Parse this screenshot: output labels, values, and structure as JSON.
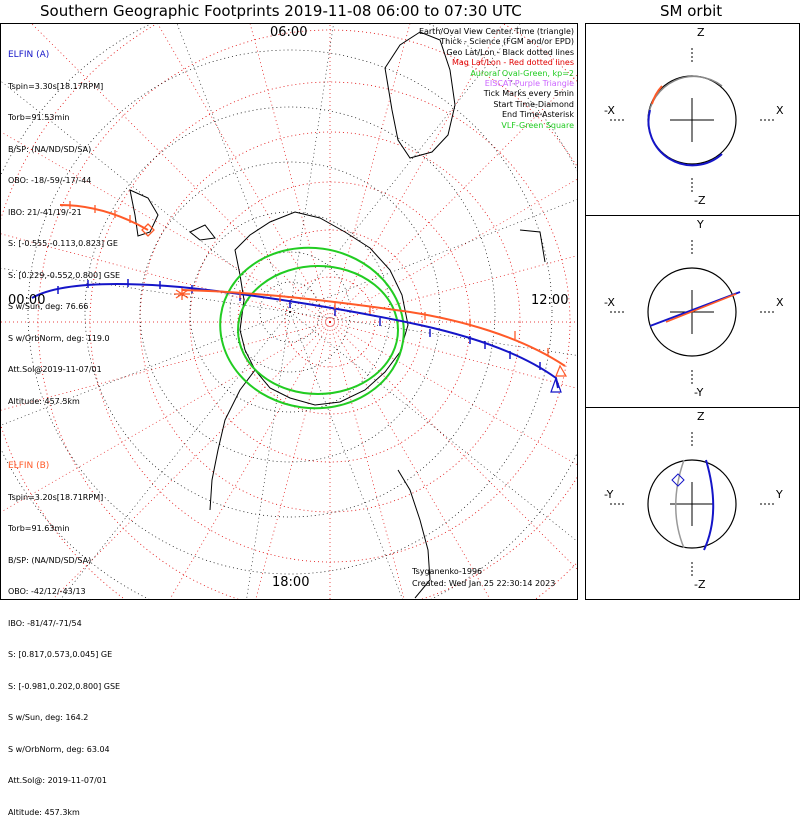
{
  "title": "Southern Geographic Footprints 2019-11-08 06:00 to 07:30 UTC",
  "orbit_title": "SM orbit",
  "hour_labels": {
    "top": "06:00",
    "left": "00:00",
    "right": "12:00",
    "bottom": "18:00"
  },
  "elfin_a": {
    "name": "ELFIN (A)",
    "color": "#1515c8",
    "lines": [
      "Tspin=3.30s[18.17RPM]",
      "Torb=91.53min",
      "B/SP: (NA/ND/SD/SA)",
      "OBO: -18/-59/-17/-44",
      "IBO: 21/-41/19/-21",
      "S: [-0.555,-0.113,0.823] GE",
      "S: [0.229,-0.552,0.800] GSE",
      "S w/Sun, deg: 76.66",
      "S w/OrbNorm, deg: 119.0",
      "Att.Sol@2019-11-07/01",
      "Altitude: 457.5km"
    ]
  },
  "elfin_b": {
    "name": "ELFIN (B)",
    "color": "#ff5a28",
    "lines": [
      "Tspin=3.20s[18.71RPM]",
      "Torb=91.63min",
      "B/SP: (NA/ND/SD/SA)",
      "OBO: -42/12/-43/13",
      "IBO: -81/47/-71/54",
      "S: [0.817,0.573,0.045] GE",
      "S: [-0.981,0.202,0.800] GSE",
      "S w/Sun, deg: 164.2",
      "S w/OrbNorm, deg: 63.04",
      "Att.Sol@: 2019-11-07/01",
      "Altitude: 457.3km"
    ]
  },
  "legend": [
    {
      "text": "Earth/Oval View Center Time (triangle)",
      "color": "#000000"
    },
    {
      "text": "Thick - Science (FGM and/or EPD)",
      "color": "#000000"
    },
    {
      "text": "Geo Lat/Lon - Black dotted lines",
      "color": "#000000"
    },
    {
      "text": "Mag Lat/Lon - Red dotted lines",
      "color": "#e00000"
    },
    {
      "text": "Auroral Oval-Green, kp=2",
      "color": "#22cc22"
    },
    {
      "text": "EISCAT-Purple Triangle",
      "color": "#cc66ff"
    },
    {
      "text": "Tick Marks every 5min",
      "color": "#000000"
    },
    {
      "text": "Start Time-Diamond",
      "color": "#000000"
    },
    {
      "text": "End Time-Asterisk",
      "color": "#000000"
    },
    {
      "text": "VLF-Green Square",
      "color": "#22cc22"
    }
  ],
  "credit": {
    "model": "Tsyganenko-1996",
    "created": "Created: Wed Jan 25 22:30:14 2023"
  },
  "orbit_panels": [
    {
      "top": "Z",
      "bottom": "-Z",
      "left": "-X",
      "right": "X"
    },
    {
      "top": "Y",
      "bottom": "-Y",
      "left": "-X",
      "right": "X"
    },
    {
      "top": "Z",
      "bottom": "-Z",
      "left": "-Y",
      "right": "Y"
    }
  ],
  "colors": {
    "elfin_a": "#1515c8",
    "elfin_b": "#ff5a28",
    "mag_grid": "#e00000",
    "geo_grid": "#000000",
    "oval": "#22cc22"
  },
  "chart_data": {
    "type": "polar footprint map",
    "hemisphere": "south",
    "geo_grid": "dotted black",
    "mag_grid": "dotted red",
    "series": [
      {
        "name": "ELFIN (A)",
        "color": "#1515c8"
      },
      {
        "name": "ELFIN (B)",
        "color": "#ff5a28"
      }
    ],
    "auroral_oval": {
      "kp": 2
    }
  }
}
